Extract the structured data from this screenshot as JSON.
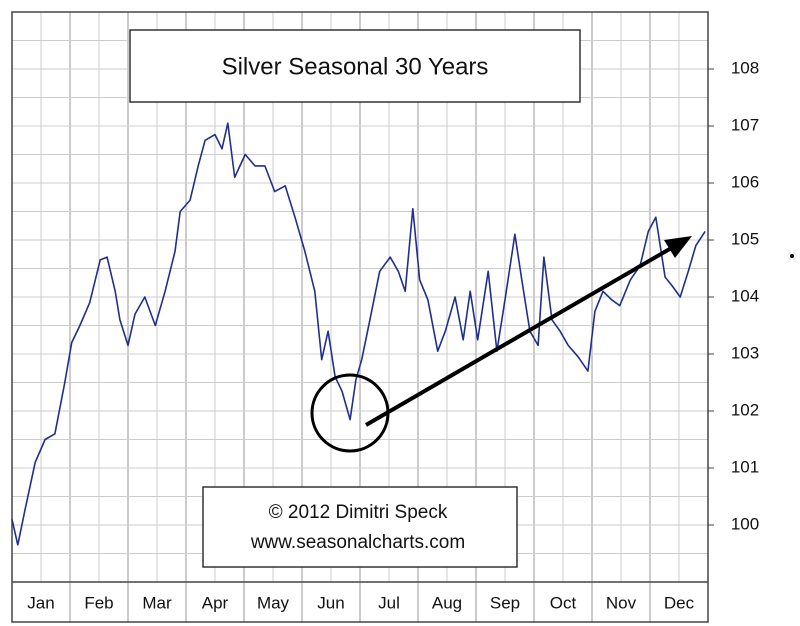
{
  "chart_data": {
    "type": "line",
    "title": "Silver Seasonal 30 Years",
    "annotations": [
      "© 2012  Dimitri Speck",
      "www.seasonalcharts.com"
    ],
    "color": "#1f2f8f",
    "x": [
      0,
      0.1,
      0.22,
      0.4,
      0.57,
      0.74,
      0.91,
      1.03,
      1.17,
      1.34,
      1.52,
      1.64,
      1.78,
      1.86,
      2.0,
      2.12,
      2.29,
      2.47,
      2.64,
      2.81,
      2.9,
      3.07,
      3.21,
      3.33,
      3.5,
      3.62,
      3.72,
      3.84,
      4.02,
      4.19,
      4.36,
      4.53,
      4.71,
      4.88,
      5.05,
      5.22,
      5.34,
      5.45,
      5.57,
      5.69,
      5.83,
      5.93,
      6.03,
      6.17,
      6.34,
      6.52,
      6.66,
      6.78,
      6.91,
      7.03,
      7.17,
      7.34,
      7.47,
      7.64,
      7.78,
      7.9,
      8.03,
      8.21,
      8.36,
      8.5,
      8.67,
      8.79,
      8.93,
      9.07,
      9.17,
      9.31,
      9.45,
      9.59,
      9.76,
      9.93,
      10.05,
      10.19,
      10.34,
      10.48,
      10.66,
      10.83,
      10.97,
      11.1,
      11.26,
      11.38,
      11.52,
      11.66,
      11.79,
      11.95
    ],
    "values": [
      100.1,
      99.65,
      100.25,
      101.1,
      101.5,
      101.6,
      102.5,
      103.2,
      103.5,
      103.9,
      104.65,
      104.7,
      104.1,
      103.6,
      103.15,
      103.7,
      104.0,
      103.5,
      104.1,
      104.8,
      105.5,
      105.7,
      106.3,
      106.75,
      106.85,
      106.6,
      107.05,
      106.1,
      106.5,
      106.3,
      106.3,
      105.85,
      105.95,
      105.4,
      104.8,
      104.1,
      102.9,
      103.4,
      102.6,
      102.35,
      101.85,
      102.55,
      102.9,
      103.6,
      104.45,
      104.7,
      104.45,
      104.1,
      105.55,
      104.3,
      103.95,
      103.05,
      103.4,
      104.0,
      103.25,
      104.1,
      103.25,
      104.45,
      103.05,
      103.95,
      105.1,
      104.3,
      103.4,
      103.15,
      104.7,
      103.6,
      103.4,
      103.15,
      102.95,
      102.7,
      103.75,
      104.1,
      103.95,
      103.85,
      104.3,
      104.55,
      105.15,
      105.4,
      104.35,
      104.2,
      104.0,
      104.45,
      104.9,
      105.15
    ],
    "xlim": [
      0,
      12
    ],
    "xticks": [
      {
        "value": 0.5,
        "label": "Jan"
      },
      {
        "value": 1.5,
        "label": "Feb"
      },
      {
        "value": 2.5,
        "label": "Mar"
      },
      {
        "value": 3.5,
        "label": "Apr"
      },
      {
        "value": 4.5,
        "label": "May"
      },
      {
        "value": 5.5,
        "label": "Jun"
      },
      {
        "value": 6.5,
        "label": "Jul"
      },
      {
        "value": 7.5,
        "label": "Aug"
      },
      {
        "value": 8.5,
        "label": "Sep"
      },
      {
        "value": 9.5,
        "label": "Oct"
      },
      {
        "value": 10.5,
        "label": "Nov"
      },
      {
        "value": 11.5,
        "label": "Dec"
      }
    ],
    "xgrid": [
      0,
      0.5,
      1,
      1.5,
      2,
      2.5,
      3,
      3.5,
      4,
      4.5,
      5,
      5.5,
      6,
      6.5,
      7,
      7.5,
      8,
      8.5,
      9,
      9.5,
      10,
      10.5,
      11,
      11.5,
      12
    ],
    "ylim": [
      99,
      109
    ],
    "yticks": [
      100,
      101,
      102,
      103,
      104,
      105,
      106,
      107,
      108
    ],
    "ygrid": [
      99.5,
      100,
      100.5,
      101,
      101.5,
      102,
      102.5,
      103,
      103.5,
      104,
      104.5,
      105,
      105.5,
      106,
      106.5,
      107,
      107.5,
      108,
      108.5
    ],
    "grid": true
  }
}
